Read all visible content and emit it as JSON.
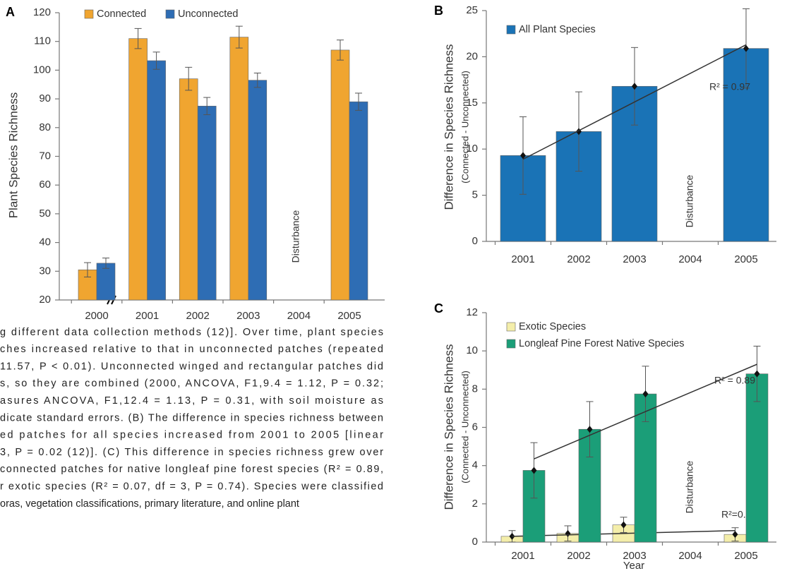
{
  "chart_data": [
    {
      "type": "bar",
      "panel": "A",
      "ylabel": "Plant Species Richness",
      "categories": [
        "2000",
        "2001",
        "2002",
        "2003",
        "2004",
        "2005"
      ],
      "series": [
        {
          "name": "Connected",
          "color": "#f0a530",
          "values": [
            30.5,
            111,
            97,
            111.5,
            null,
            107
          ],
          "errors": [
            2.5,
            3.5,
            4,
            3.8,
            null,
            3.5
          ]
        },
        {
          "name": "Unconnected",
          "color": "#2e6db4",
          "values": [
            32.8,
            103.3,
            87.5,
            96.5,
            null,
            89
          ],
          "errors": [
            1.8,
            3,
            3,
            2.5,
            null,
            3
          ]
        }
      ],
      "ylim": [
        20,
        120
      ],
      "yticks": [
        20,
        30,
        40,
        50,
        60,
        70,
        80,
        90,
        100,
        110,
        120
      ],
      "annotations": [
        "Disturbance"
      ]
    },
    {
      "type": "bar",
      "panel": "B",
      "ylabel": "Difference in Species Richness",
      "ylabel2": "(Connected - Unconnected)",
      "categories": [
        "2001",
        "2002",
        "2003",
        "2004",
        "2005"
      ],
      "series": [
        {
          "name": "All Plant Species",
          "color": "#1a73b6",
          "values": [
            9.3,
            11.9,
            16.8,
            null,
            20.9
          ],
          "errors": [
            4.2,
            4.3,
            4.2,
            null,
            4.3
          ],
          "trend": [
            8.9,
            21.3
          ],
          "fit": "R² = 0.97"
        }
      ],
      "ylim": [
        0,
        25
      ],
      "yticks": [
        0,
        5,
        10,
        15,
        20,
        25
      ],
      "annotations": [
        "Disturbance"
      ]
    },
    {
      "type": "bar",
      "panel": "C",
      "ylabel": "Difference in Species Richness",
      "ylabel2": "(Connected - Unconnected)",
      "xlabel": "Year",
      "categories": [
        "2001",
        "2002",
        "2003",
        "2004",
        "2005"
      ],
      "series": [
        {
          "name": "Exotic Species",
          "color": "#f4eeaa",
          "values": [
            0.3,
            0.45,
            0.9,
            null,
            0.4
          ],
          "errors": [
            0.3,
            0.4,
            0.4,
            null,
            0.35
          ],
          "trend": [
            0.3,
            0.6
          ],
          "fit": "R²=0.07"
        },
        {
          "name": "Longleaf Pine Forest Native Species",
          "color": "#1b9e78",
          "values": [
            3.75,
            5.9,
            7.75,
            null,
            8.8
          ],
          "errors": [
            1.45,
            1.45,
            1.45,
            null,
            1.45
          ],
          "trend": [
            4.35,
            9.3
          ],
          "fit": "R² = 0.89"
        }
      ],
      "ylim": [
        0,
        12
      ],
      "yticks": [
        0,
        2,
        4,
        6,
        8,
        10,
        12
      ],
      "annotations": [
        "Disturbance"
      ]
    }
  ],
  "caption": {
    "lines": [
      "g different data collection methods (12)]. Over time, plant species",
      "ches increased relative to that in unconnected patches (repeated",
      "11.57, P < 0.01). Unconnected winged and rectangular patches did",
      "s, so they are combined (2000, ANCOVA, F1,9.4 = 1.12, P = 0.32;",
      "asures ANCOVA, F1,12.4 = 1.13, P = 0.31, with soil moisture as",
      "dicate standard errors. (B) The difference in species richness between",
      "ed patches for all species increased from 2001 to 2005 [linear",
      "3, P = 0.02 (12)]. (C) This difference in species richness grew over",
      "connected patches for native longleaf pine forest species (R² = 0.89,",
      "r exotic species (R² = 0.07, df = 3, P = 0.74). Species were classified",
      "oras, vegetation classifications, primary literature, and online plant"
    ]
  }
}
